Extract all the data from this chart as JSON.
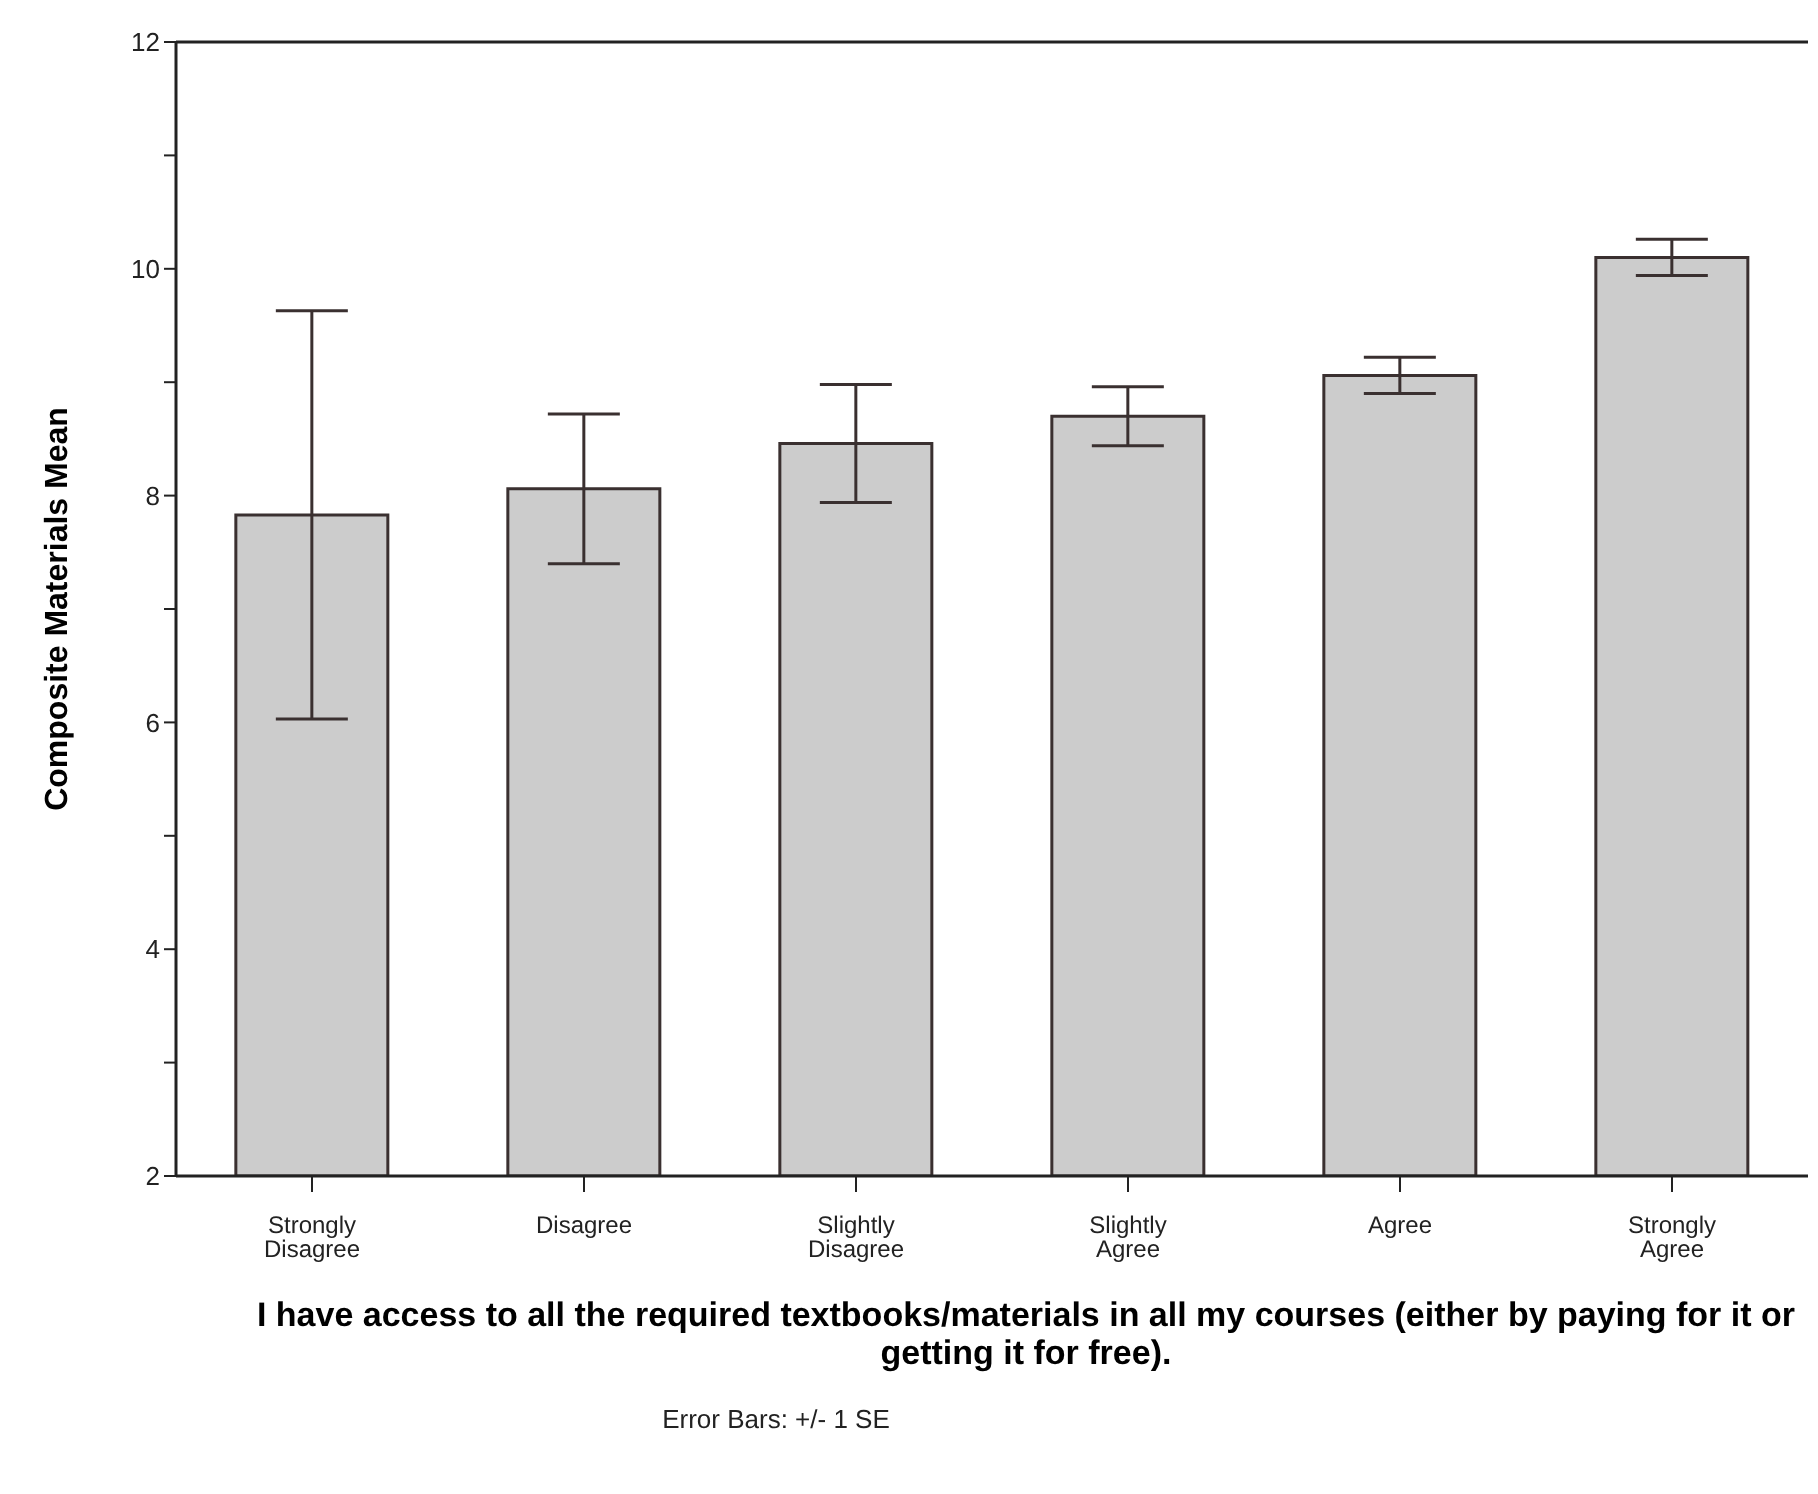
{
  "chart_data": {
    "type": "bar",
    "xlabel": "I have access to all the required textbooks/materials in all my courses (either by paying for it or getting it for free).",
    "ylabel": "Composite Materials Mean",
    "categories": [
      "Strongly Disagree",
      "Disagree",
      "Slightly Disagree",
      "Slightly Agree",
      "Agree",
      "Strongly Agree"
    ],
    "values": [
      7.83,
      8.06,
      8.46,
      8.7,
      9.06,
      10.1
    ],
    "errors": [
      1.8,
      0.66,
      0.52,
      0.26,
      0.16,
      0.16
    ],
    "color": "#cccccc",
    "ylim": [
      2,
      12
    ],
    "yticks": [
      2,
      {
        "value": 3,
        "label": null
      },
      4,
      {
        "value": 5,
        "label": null
      },
      6,
      {
        "value": 7,
        "label": null
      },
      8,
      {
        "value": 9,
        "label": null
      },
      10,
      {
        "value": 11,
        "label": null
      },
      12
    ],
    "grid": false,
    "legend": false,
    "annotations": [
      "Error Bars: +/- 1 SE"
    ]
  }
}
